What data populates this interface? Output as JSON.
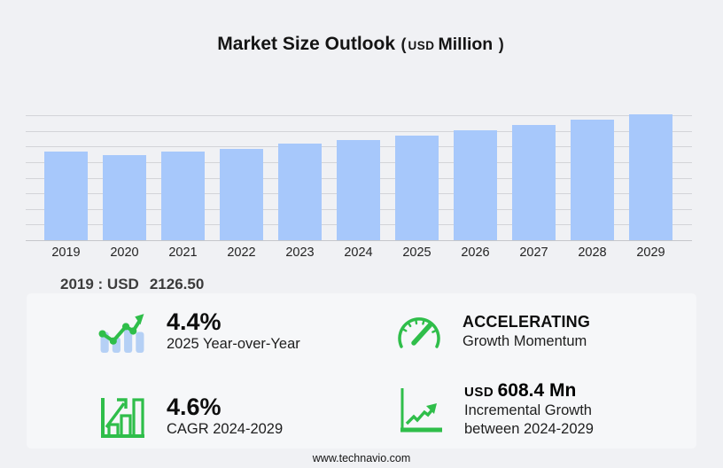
{
  "title": {
    "main": "Market Size Outlook",
    "paren_open": "(",
    "unit_small": "USD",
    "unit_large": "Million",
    "paren_close": ")"
  },
  "chart_data": {
    "type": "bar",
    "title": "Market Size Outlook (USD Million)",
    "categories": [
      "2019",
      "2020",
      "2021",
      "2022",
      "2023",
      "2024",
      "2025",
      "2026",
      "2027",
      "2028",
      "2029"
    ],
    "values": [
      2126.5,
      2040,
      2130,
      2197,
      2310,
      2412.6,
      2518.8,
      2640,
      2760,
      2890,
      3021
    ],
    "xlabel": "",
    "ylabel": "",
    "ylim": [
      0,
      3000
    ],
    "grid": true,
    "legend": false,
    "bar_color": "#a7c8fb"
  },
  "base_year": {
    "label": "2019 : USD",
    "value": "2126.50"
  },
  "stats": [
    {
      "icon": "bar-line-growth-icon",
      "value": "4.4%",
      "label": "2025 Year-over-Year"
    },
    {
      "icon": "speedometer-icon",
      "value": "ACCELERATING",
      "label": "Growth Momentum"
    },
    {
      "icon": "bar-chart-frame-icon",
      "value": "4.6%",
      "label": "CAGR 2024-2029"
    },
    {
      "icon": "line-growth-axes-icon",
      "value_prefix": "USD",
      "value": "608.4 Mn",
      "label": "Incremental Growth",
      "label2": "between 2024-2029"
    }
  ],
  "footer": {
    "url": "www.technavio.com"
  },
  "colors": {
    "bar": "#a7c8fb",
    "green": "#2fbe4a",
    "icon_blue": "#b5d0f5",
    "background": "#f0f1f4",
    "panel": "#f6f7f9",
    "grid": "#d3d4d8"
  }
}
